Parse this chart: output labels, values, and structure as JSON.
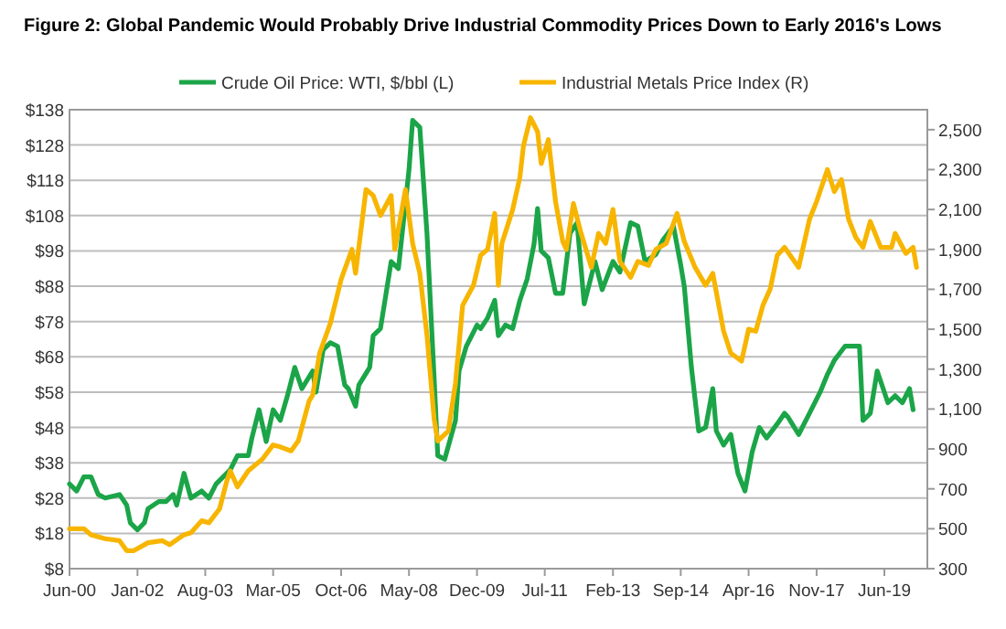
{
  "chart_data": {
    "type": "line",
    "title": "Figure 2: Global Pandemic Would Probably Drive Industrial Commodity Prices Down to Early 2016's Lows",
    "xlim": [
      "2000-06",
      "2020-06"
    ],
    "xticks": [
      {
        "value": "2000-06",
        "label": "Jun-00"
      },
      {
        "value": "2002-01",
        "label": "Jan-02"
      },
      {
        "value": "2003-08",
        "label": "Aug-03"
      },
      {
        "value": "2005-03",
        "label": "Mar-05"
      },
      {
        "value": "2006-10",
        "label": "Oct-06"
      },
      {
        "value": "2008-05",
        "label": "May-08"
      },
      {
        "value": "2009-12",
        "label": "Dec-09"
      },
      {
        "value": "2011-07",
        "label": "Jul-11"
      },
      {
        "value": "2013-02",
        "label": "Feb-13"
      },
      {
        "value": "2014-09",
        "label": "Sep-14"
      },
      {
        "value": "2016-04",
        "label": "Apr-16"
      },
      {
        "value": "2017-11",
        "label": "Nov-17"
      },
      {
        "value": "2019-06",
        "label": "Jun-19"
      }
    ],
    "ylim": [
      8,
      138
    ],
    "yticks": [
      {
        "value": 8,
        "label": "$8"
      },
      {
        "value": 18,
        "label": "$18"
      },
      {
        "value": 28,
        "label": "$28"
      },
      {
        "value": 38,
        "label": "$38"
      },
      {
        "value": 48,
        "label": "$48"
      },
      {
        "value": 58,
        "label": "$58"
      },
      {
        "value": 68,
        "label": "$68"
      },
      {
        "value": 78,
        "label": "$78"
      },
      {
        "value": 88,
        "label": "$88"
      },
      {
        "value": 98,
        "label": "$98"
      },
      {
        "value": 108,
        "label": "$108"
      },
      {
        "value": 118,
        "label": "$118"
      },
      {
        "value": 128,
        "label": "$128"
      },
      {
        "value": 138,
        "label": "$138"
      }
    ],
    "y2lim": [
      300,
      2600
    ],
    "y2ticks": [
      300,
      500,
      700,
      900,
      {
        "value": 1100,
        "label": "1,100"
      },
      {
        "value": 1300,
        "label": "1,300"
      },
      {
        "value": 1500,
        "label": "1,500"
      },
      {
        "value": 1700,
        "label": "1,700"
      },
      {
        "value": 1900,
        "label": "1,900"
      },
      {
        "value": 2100,
        "label": "2,100"
      },
      {
        "value": 2300,
        "label": "2,300"
      },
      {
        "value": 2500,
        "label": "2,500"
      }
    ],
    "grid": "y",
    "legend": "top",
    "line_style": "solid",
    "series": [
      {
        "name": "Crude Oil Price: WTI, $/bbl (L)",
        "color": "#1ba548",
        "x": [
          "2000-06",
          "2000-08",
          "2000-10",
          "2000-12",
          "2001-02",
          "2001-04",
          "2001-08",
          "2001-10",
          "2001-11",
          "2002-01",
          "2002-03",
          "2002-04",
          "2002-07",
          "2002-09",
          "2002-11",
          "2002-12",
          "2003-02",
          "2003-04",
          "2003-07",
          "2003-09",
          "2003-11",
          "2004-03",
          "2004-05",
          "2004-08",
          "2004-09",
          "2004-11",
          "2005-01",
          "2005-03",
          "2005-05",
          "2005-07",
          "2005-09",
          "2005-11",
          "2006-02",
          "2006-03",
          "2006-05",
          "2006-07",
          "2006-09",
          "2006-11",
          "2006-12",
          "2007-02",
          "2007-03",
          "2007-06",
          "2007-07",
          "2007-09",
          "2007-12",
          "2008-02",
          "2008-05",
          "2008-06",
          "2008-08",
          "2008-10",
          "2008-12",
          "2009-01",
          "2009-03",
          "2009-06",
          "2009-07",
          "2009-09",
          "2009-12",
          "2010-01",
          "2010-03",
          "2010-05",
          "2010-06",
          "2010-08",
          "2010-10",
          "2010-12",
          "2011-02",
          "2011-04",
          "2011-05",
          "2011-06",
          "2011-08",
          "2011-10",
          "2011-12",
          "2012-02",
          "2012-04",
          "2012-06",
          "2012-09",
          "2012-11",
          "2013-02",
          "2013-04",
          "2013-07",
          "2013-09",
          "2013-11",
          "2014-02",
          "2014-04",
          "2014-07",
          "2014-09",
          "2014-10",
          "2014-12",
          "2015-02",
          "2015-04",
          "2015-06",
          "2015-07",
          "2015-09",
          "2015-11",
          "2016-01",
          "2016-03",
          "2016-05",
          "2016-07",
          "2016-09",
          "2016-12",
          "2017-02",
          "2017-03",
          "2017-06",
          "2017-09",
          "2017-12",
          "2018-02",
          "2018-04",
          "2018-07",
          "2018-09",
          "2018-11",
          "2018-12",
          "2019-02",
          "2019-04",
          "2019-07",
          "2019-09",
          "2019-11",
          "2020-01",
          "2020-02"
        ],
        "values": [
          32,
          30,
          34,
          34,
          29,
          28,
          29,
          26,
          21,
          19,
          21,
          25,
          27,
          27,
          29,
          26,
          35,
          28,
          30,
          28,
          32,
          36,
          40,
          40,
          45,
          53,
          44,
          53,
          50,
          57,
          65,
          59,
          64,
          58,
          70,
          72,
          71,
          60,
          59,
          54,
          60,
          65,
          74,
          76,
          95,
          93,
          121,
          135,
          133,
          103,
          62,
          40,
          39,
          50,
          64,
          71,
          77,
          76,
          79,
          84,
          74,
          77,
          76,
          84,
          90,
          100,
          110,
          98,
          96,
          86,
          86,
          103,
          106,
          83,
          95,
          87,
          95,
          92,
          106,
          105,
          95,
          97,
          101,
          105,
          94,
          88,
          65,
          47,
          48,
          59,
          47,
          43,
          46,
          35,
          30,
          41,
          48,
          45,
          49,
          52,
          51,
          46,
          52,
          58,
          63,
          67,
          71,
          71,
          71,
          50,
          52,
          64,
          55,
          57,
          55,
          59,
          53
        ]
      },
      {
        "name": "Industrial Metals Price Index (R)",
        "color": "#f7b500",
        "axis": "y2",
        "x": [
          "2000-06",
          "2000-10",
          "2000-12",
          "2001-04",
          "2001-08",
          "2001-10",
          "2001-12",
          "2002-04",
          "2002-08",
          "2002-10",
          "2003-02",
          "2003-04",
          "2003-07",
          "2003-09",
          "2003-12",
          "2004-02",
          "2004-03",
          "2004-05",
          "2004-08",
          "2004-12",
          "2005-03",
          "2005-05",
          "2005-08",
          "2005-10",
          "2006-01",
          "2006-02",
          "2006-04",
          "2006-07",
          "2006-10",
          "2007-01",
          "2007-02",
          "2007-05",
          "2007-07",
          "2007-09",
          "2007-12",
          "2008-01",
          "2008-04",
          "2008-06",
          "2008-08",
          "2008-10",
          "2008-12",
          "2009-01",
          "2009-04",
          "2009-06",
          "2009-08",
          "2009-11",
          "2010-01",
          "2010-03",
          "2010-05",
          "2010-06",
          "2010-07",
          "2010-10",
          "2010-12",
          "2011-01",
          "2011-03",
          "2011-05",
          "2011-06",
          "2011-08",
          "2011-10",
          "2011-12",
          "2012-01",
          "2012-03",
          "2012-05",
          "2012-08",
          "2012-10",
          "2012-12",
          "2013-02",
          "2013-04",
          "2013-07",
          "2013-09",
          "2013-12",
          "2014-02",
          "2014-05",
          "2014-08",
          "2014-10",
          "2015-01",
          "2015-04",
          "2015-06",
          "2015-09",
          "2015-11",
          "2016-02",
          "2016-04",
          "2016-06",
          "2016-08",
          "2016-10",
          "2016-12",
          "2017-02",
          "2017-06",
          "2017-09",
          "2017-11",
          "2018-02",
          "2018-04",
          "2018-06",
          "2018-08",
          "2018-10",
          "2018-12",
          "2019-02",
          "2019-05",
          "2019-08",
          "2019-09",
          "2019-12",
          "2020-02",
          "2020-03"
        ],
        "values": [
          500,
          500,
          470,
          450,
          440,
          390,
          390,
          430,
          440,
          420,
          470,
          480,
          540,
          530,
          600,
          740,
          790,
          710,
          790,
          850,
          920,
          910,
          890,
          940,
          1140,
          1170,
          1380,
          1530,
          1750,
          1900,
          1780,
          2200,
          2170,
          2070,
          2170,
          1900,
          2200,
          1930,
          1780,
          1470,
          1050,
          940,
          990,
          1230,
          1620,
          1720,
          1870,
          1900,
          2080,
          1720,
          1930,
          2100,
          2260,
          2420,
          2560,
          2490,
          2330,
          2450,
          2140,
          1940,
          1900,
          2130,
          1990,
          1810,
          1980,
          1930,
          2100,
          1840,
          1760,
          1840,
          1820,
          1900,
          1930,
          2080,
          1940,
          1810,
          1720,
          1780,
          1490,
          1380,
          1340,
          1500,
          1490,
          1620,
          1700,
          1870,
          1910,
          1810,
          2050,
          2140,
          2300,
          2190,
          2250,
          2050,
          1960,
          1910,
          2040,
          1910,
          1910,
          1980,
          1880,
          1910,
          1810
        ]
      }
    ]
  }
}
